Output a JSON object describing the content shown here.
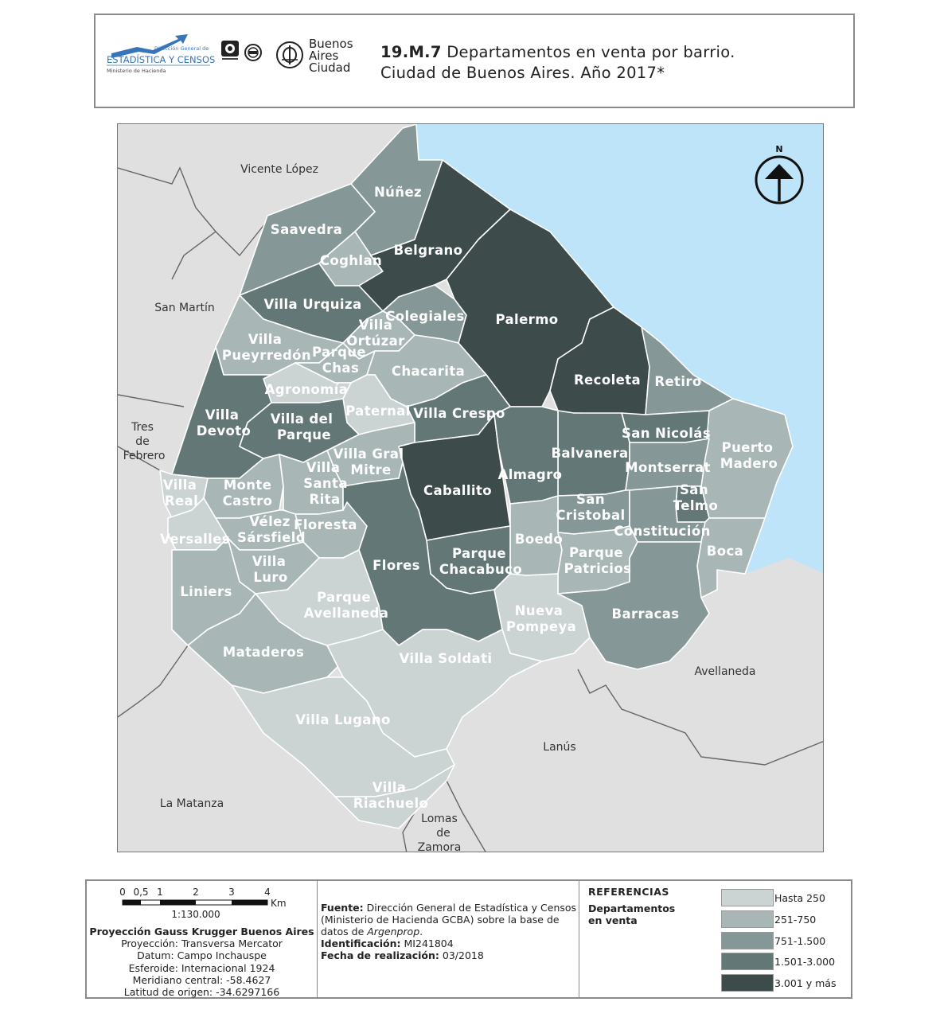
{
  "header": {
    "code": "19.M.7",
    "title_line1": "Departamentos en venta por barrio.",
    "title_line2": "Ciudad de Buenos Aires. Año 2017*",
    "logo_estadistica_top": "Dirección General de",
    "logo_estadistica_main": "ESTADÍSTICA Y CENSOS",
    "logo_estadistica_sub": "Ministerio de Hacienda",
    "logo_ba_line1": "Buenos",
    "logo_ba_line2": "Aires",
    "logo_ba_line3": "Ciudad"
  },
  "map": {
    "north_label": "N",
    "neighbors": {
      "vicente_lopez": "Vicente López",
      "san_martin": "San Martín",
      "tres_de_febrero_1": "Tres",
      "tres_de_febrero_2": "de",
      "tres_de_febrero_3": "Febrero",
      "la_matanza": "La Matanza",
      "lomas_1": "Lomas",
      "lomas_2": "de",
      "lomas_3": "Zamora",
      "lanus": "Lanús",
      "avellaneda": "Avellaneda"
    },
    "barrios": [
      {
        "name": "Núñez",
        "class": "751-1.500"
      },
      {
        "name": "Saavedra",
        "class": "751-1.500"
      },
      {
        "name": "Coghlan",
        "class": "251-750"
      },
      {
        "name": "Belgrano",
        "class": "3.001 y más"
      },
      {
        "name": "Villa Urquiza",
        "class": "1.501-3.000"
      },
      {
        "name": "Colegiales",
        "class": "751-1.500"
      },
      {
        "name": "Palermo",
        "class": "3.001 y más"
      },
      {
        "name": "Villa Ortúzar",
        "class": "251-750"
      },
      {
        "name": "Villa Pueyrredón",
        "class": "251-750"
      },
      {
        "name": "Parque Chas",
        "class": "251-750"
      },
      {
        "name": "Chacarita",
        "class": "251-750"
      },
      {
        "name": "Recoleta",
        "class": "3.001 y más"
      },
      {
        "name": "Retiro",
        "class": "751-1.500"
      },
      {
        "name": "Agronomía",
        "class": "Hasta 250"
      },
      {
        "name": "Paternal",
        "class": "Hasta 250"
      },
      {
        "name": "Villa Crespo",
        "class": "1.501-3.000"
      },
      {
        "name": "Villa Devoto",
        "class": "1.501-3.000"
      },
      {
        "name": "Villa del Parque",
        "class": "1.501-3.000"
      },
      {
        "name": "San Nicolás",
        "class": "1.501-3.000"
      },
      {
        "name": "Puerto Madero",
        "class": "251-750"
      },
      {
        "name": "Villa Gral Mitre",
        "class": "251-750"
      },
      {
        "name": "Balvanera",
        "class": "1.501-3.000"
      },
      {
        "name": "Montserrat",
        "class": "751-1.500"
      },
      {
        "name": "Villa Real",
        "class": "Hasta 250"
      },
      {
        "name": "Monte Castro",
        "class": "251-750"
      },
      {
        "name": "Villa Santa Rita",
        "class": "251-750"
      },
      {
        "name": "Caballito",
        "class": "3.001 y más"
      },
      {
        "name": "Almagro",
        "class": "1.501-3.000"
      },
      {
        "name": "San Cristobal",
        "class": "751-1.500"
      },
      {
        "name": "San Telmo",
        "class": "1.501-3.000"
      },
      {
        "name": "Vélez Sársfield",
        "class": "251-750"
      },
      {
        "name": "Floresta",
        "class": "251-750"
      },
      {
        "name": "Constitución",
        "class": "751-1.500"
      },
      {
        "name": "Versalles",
        "class": "Hasta 250"
      },
      {
        "name": "Boedo",
        "class": "251-750"
      },
      {
        "name": "Parque Chacabuco",
        "class": "1.501-3.000"
      },
      {
        "name": "Parque Patricios",
        "class": "251-750"
      },
      {
        "name": "Boca",
        "class": "251-750"
      },
      {
        "name": "Villa Luro",
        "class": "251-750"
      },
      {
        "name": "Flores",
        "class": "1.501-3.000"
      },
      {
        "name": "Liniers",
        "class": "251-750"
      },
      {
        "name": "Parque Avellaneda",
        "class": "Hasta 250"
      },
      {
        "name": "Nueva Pompeya",
        "class": "Hasta 250"
      },
      {
        "name": "Barracas",
        "class": "751-1.500"
      },
      {
        "name": "Mataderos",
        "class": "251-750"
      },
      {
        "name": "Villa Soldati",
        "class": "Hasta 250"
      },
      {
        "name": "Villa Lugano",
        "class": "Hasta 250"
      },
      {
        "name": "Villa Riachuelo",
        "class": "Hasta 250"
      }
    ],
    "colors": {
      "Hasta 250": "#ccd3d3",
      "251-750": "#a9b6b6",
      "751-1.500": "#869797",
      "1.501-3.000": "#627776",
      "3.001 y más": "#3d4b4b",
      "outside": "#e0e0e0",
      "water": "#bde4f8"
    }
  },
  "footer": {
    "scale_ticks": [
      "0",
      "0,5",
      "1",
      "2",
      "3",
      "4"
    ],
    "scale_unit": "Km",
    "scale_ratio": "1:130.000",
    "projection_title": "Proyección Gauss Krugger Buenos Aires",
    "projection": "Proyección: Transversa Mercator",
    "datum": "Datum: Campo Inchauspe",
    "esferoide": "Esferoide: Internacional 1924",
    "meridiano": "Meridiano central: -58.4627",
    "latitud": "Latitud de origen: -34.6297166",
    "fuente_label": "Fuente:",
    "fuente_text": "Dirección General de Estadística y Censos (Ministerio de Hacienda GCBA) sobre la base de datos de",
    "fuente_italic": "Argenprop",
    "fuente_end": ".",
    "id_label": "Identificación:",
    "id_value": "MI241804",
    "fecha_label": "Fecha de realización:",
    "fecha_value": "03/2018",
    "refs_title": "REFERENCIAS",
    "refs_sub": "Departamentos en venta",
    "legend": [
      {
        "label": "Hasta 250",
        "color": "#ccd3d3"
      },
      {
        "label": "251-750",
        "color": "#a9b6b6"
      },
      {
        "label": "751-1.500",
        "color": "#869797"
      },
      {
        "label": "1.501-3.000",
        "color": "#627776"
      },
      {
        "label": "3.001 y más",
        "color": "#3d4b4b"
      }
    ]
  }
}
